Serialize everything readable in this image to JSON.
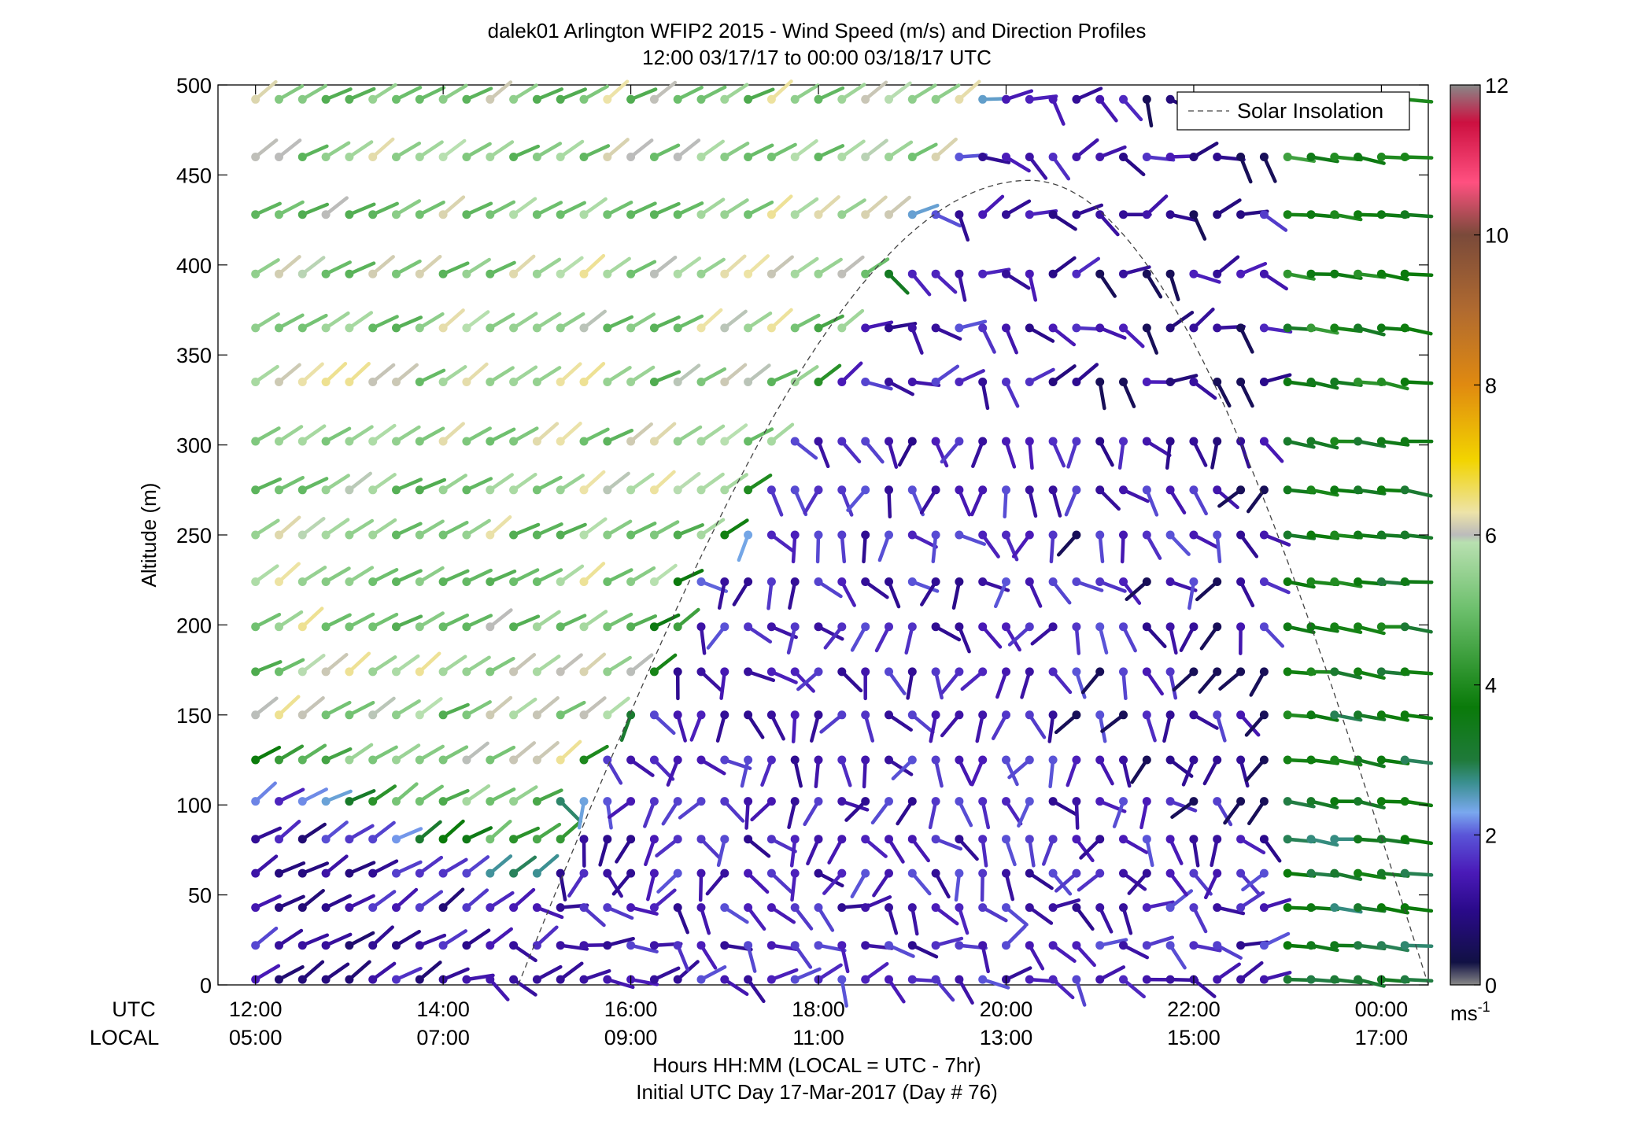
{
  "chart_data": {
    "type": "wind-barb-profile",
    "title": "dalek01 Arlington WFIP2 2015 - Wind Speed (m/s) and Direction Profiles",
    "subtitle": "12:00 03/17/17 to 00:00 03/18/17  UTC",
    "ylabel": "Altitude (m)",
    "xlabel": "Hours HH:MM  (LOCAL = UTC - 7hr)",
    "xlabel2": "Initial UTC Day 17-Mar-2017 (Day # 76)",
    "xrow_labels": [
      "UTC",
      "LOCAL"
    ],
    "x_ticks_utc": [
      "12:00",
      "14:00",
      "16:00",
      "18:00",
      "20:00",
      "22:00",
      "00:00"
    ],
    "x_ticks_local": [
      "05:00",
      "07:00",
      "09:00",
      "11:00",
      "13:00",
      "15:00",
      "17:00"
    ],
    "x_tick_hours": [
      12,
      14,
      16,
      18,
      20,
      22,
      24
    ],
    "xlim_hours": [
      11.6,
      24.5
    ],
    "y_ticks": [
      0,
      50,
      100,
      150,
      200,
      250,
      300,
      350,
      400,
      450,
      500
    ],
    "ylim": [
      0,
      500
    ],
    "altitudes": [
      3,
      22,
      43,
      62,
      81,
      102,
      125,
      150,
      174,
      199,
      224,
      250,
      275,
      302,
      335,
      365,
      395,
      428,
      460,
      492
    ],
    "times_hours": [
      12,
      12.25,
      12.5,
      12.75,
      13,
      13.25,
      13.5,
      13.75,
      14,
      14.25,
      14.5,
      14.75,
      15,
      15.25,
      15.5,
      15.75,
      16,
      16.25,
      16.5,
      16.75,
      17,
      17.25,
      17.5,
      17.75,
      18,
      18.25,
      18.5,
      18.75,
      19,
      19.25,
      19.5,
      19.75,
      20,
      20.25,
      20.5,
      20.75,
      21,
      21.25,
      21.5,
      21.75,
      22,
      22.25,
      22.5,
      22.75,
      23,
      23.25,
      23.5,
      23.75,
      24,
      24.25
    ],
    "wind_field_note_speed_ms": {
      "morning_upper_levels": 5.0,
      "morning_low_levels": 1.5,
      "midday_lower_levels": 1.6,
      "afternoon_upper_levels": 1.6,
      "evening_all_levels": 3.5
    },
    "colorbar": {
      "ticks": [
        0,
        2,
        4,
        6,
        8,
        10,
        12
      ],
      "range": [
        0,
        12
      ],
      "unit_label": "ms",
      "unit_exponent": "-1",
      "stops": [
        {
          "v": 0.0,
          "c": "#888888"
        },
        {
          "v": 0.3,
          "c": "#111144"
        },
        {
          "v": 1.0,
          "c": "#2a0a8a"
        },
        {
          "v": 1.5,
          "c": "#4a1ab8"
        },
        {
          "v": 2.0,
          "c": "#5a55d8"
        },
        {
          "v": 2.3,
          "c": "#7aa8ef"
        },
        {
          "v": 2.7,
          "c": "#3a8f8f"
        },
        {
          "v": 3.0,
          "c": "#1f7a3a"
        },
        {
          "v": 3.7,
          "c": "#0a7a0a"
        },
        {
          "v": 4.0,
          "c": "#1f8a1f"
        },
        {
          "v": 5.0,
          "c": "#6cbf6c"
        },
        {
          "v": 5.9,
          "c": "#b8e0b0"
        },
        {
          "v": 6.0,
          "c": "#bbbbbb"
        },
        {
          "v": 6.3,
          "c": "#ede3a8"
        },
        {
          "v": 7.0,
          "c": "#f2d400"
        },
        {
          "v": 8.0,
          "c": "#e08a10"
        },
        {
          "v": 9.0,
          "c": "#b06a30"
        },
        {
          "v": 10.0,
          "c": "#7a4a3a"
        },
        {
          "v": 10.7,
          "c": "#ff5080"
        },
        {
          "v": 11.5,
          "c": "#cc1040"
        },
        {
          "v": 12.0,
          "c": "#888888"
        }
      ]
    },
    "solar_insolation": {
      "label": "Solar Insolation",
      "sunrise_hour": 14.8,
      "peak_hour": 20.25,
      "sunset_hour": 24.5,
      "peak_altitude_equiv": 447
    },
    "legend_position": "top-right",
    "grid": false
  }
}
